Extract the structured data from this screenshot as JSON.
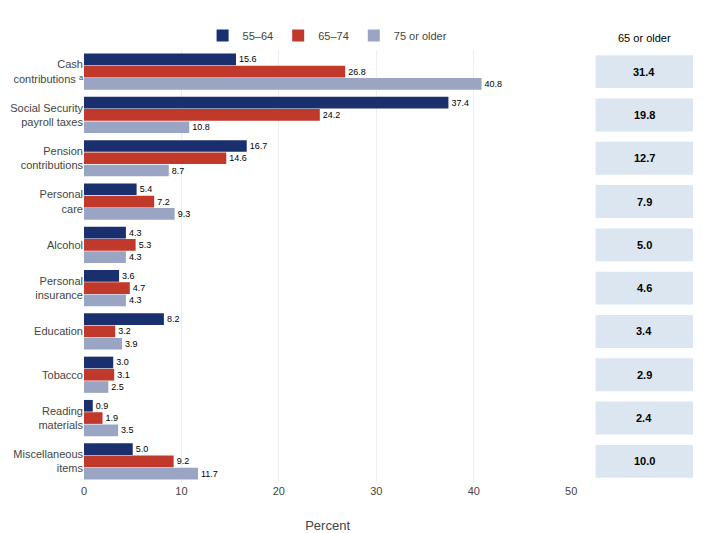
{
  "chart_data": {
    "type": "bar",
    "orientation": "horizontal",
    "categories": [
      "Cash\ncontributions ᵃ",
      "Social Security\npayroll taxes",
      "Pension\ncontributions",
      "Personal\ncare",
      "Alcohol",
      "Personal\ninsurance",
      "Education",
      "Tobacco",
      "Reading\nmaterials",
      "Miscellaneous\nitems"
    ],
    "series": [
      {
        "name": "55–64",
        "color": "#1a2f6e",
        "values": [
          15.6,
          37.4,
          16.7,
          5.4,
          4.3,
          3.6,
          8.2,
          3.0,
          0.9,
          5.0
        ],
        "value_labels": [
          "15.6",
          "37.4",
          "16.7",
          "5.4",
          "4.3",
          "3.6",
          "8.2",
          "3.0",
          "0.9",
          "5.0"
        ]
      },
      {
        "name": "65–74",
        "color": "#c0392b",
        "values": [
          26.8,
          24.2,
          14.6,
          7.2,
          5.3,
          4.7,
          3.2,
          3.1,
          1.9,
          9.2
        ],
        "value_labels": [
          "26.8",
          "24.2",
          "14.6",
          "7.2",
          "5.3",
          "4.7",
          "3.2",
          "3.1",
          "1.9",
          "9.2"
        ]
      },
      {
        "name": "75 or older",
        "color": "#9aa5c4",
        "values": [
          40.8,
          10.8,
          8.7,
          9.3,
          4.3,
          4.3,
          3.9,
          2.5,
          3.5,
          11.7
        ],
        "value_labels": [
          "40.8",
          "10.8",
          "8.7",
          "9.3",
          "4.3",
          "4.3",
          "3.9",
          "2.5",
          "3.5",
          "11.7"
        ]
      }
    ],
    "sidebar": {
      "title": "65 or older",
      "color": "#dce6f1",
      "values": [
        31.4,
        19.8,
        12.7,
        7.9,
        5.0,
        4.6,
        3.4,
        2.9,
        2.4,
        10.0
      ],
      "value_labels": [
        "31.4",
        "19.8",
        "12.7",
        "7.9",
        "5.0",
        "4.6",
        "3.4",
        "2.9",
        "2.4",
        "10.0"
      ]
    },
    "xlabel": "Percent",
    "xlim": [
      0,
      50
    ],
    "xticks": [
      0,
      10,
      20,
      30,
      40,
      50
    ],
    "grid": true,
    "data_labels": true,
    "legend": "top"
  }
}
